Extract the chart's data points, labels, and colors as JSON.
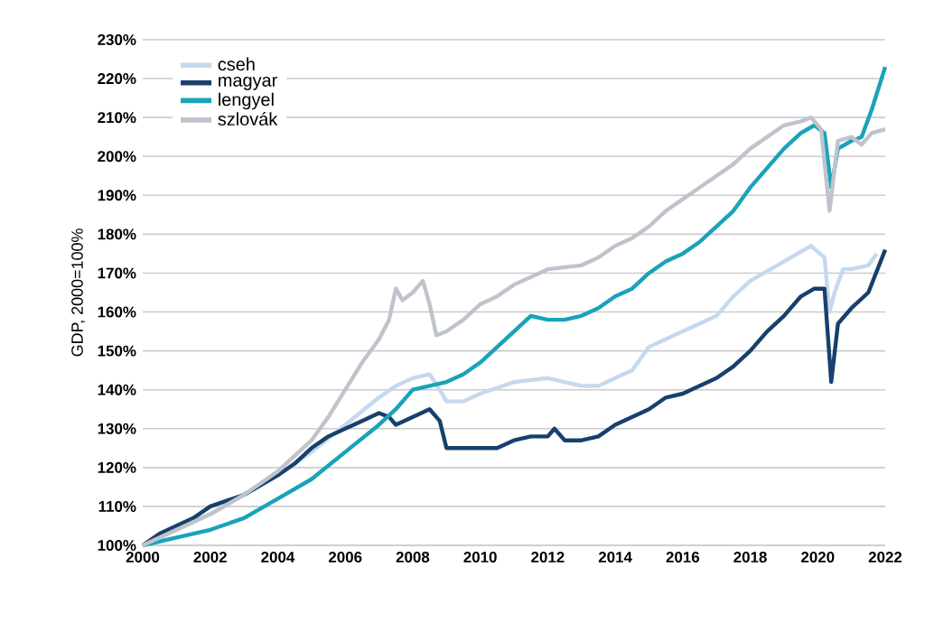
{
  "chart_data": {
    "type": "line",
    "ylabel": "GDP, 2000=100%",
    "xlim": [
      2000,
      2022
    ],
    "ylim": [
      100,
      230
    ],
    "xticks": [
      2000,
      2002,
      2004,
      2006,
      2008,
      2010,
      2012,
      2014,
      2016,
      2018,
      2020,
      2022
    ],
    "yticks": [
      {
        "value": 100,
        "label": "100%"
      },
      {
        "value": 110,
        "label": "110%"
      },
      {
        "value": 120,
        "label": "120%"
      },
      {
        "value": 130,
        "label": "130%"
      },
      {
        "value": 140,
        "label": "140%"
      },
      {
        "value": 150,
        "label": "150%"
      },
      {
        "value": 160,
        "label": "160%"
      },
      {
        "value": 170,
        "label": "170%"
      },
      {
        "value": 180,
        "label": "180%"
      },
      {
        "value": 190,
        "label": "190%"
      },
      {
        "value": 200,
        "label": "200%"
      },
      {
        "value": 210,
        "label": "210%"
      },
      {
        "value": 220,
        "label": "220%"
      },
      {
        "value": 230,
        "label": "230%"
      }
    ],
    "grid": "y",
    "legend": "top left",
    "marker": "none",
    "line_style": "solid",
    "series": [
      {
        "name": "cseh",
        "color": "#c5d9ee",
        "x": [
          2000,
          2001,
          2002,
          2003,
          2004,
          2005,
          2006,
          2007,
          2007.5,
          2008,
          2008.5,
          2008.8,
          2009,
          2009.5,
          2010,
          2011,
          2012,
          2012.5,
          2013,
          2013.5,
          2014,
          2014.5,
          2015,
          2016,
          2017,
          2017.5,
          2018,
          2019,
          2019.8,
          2020.2,
          2020.35,
          2020.5,
          2020.75,
          2021,
          2021.5,
          2021.75
        ],
        "values": [
          100,
          104,
          108,
          113,
          118,
          124,
          131,
          138,
          141,
          143,
          144,
          140,
          137,
          137,
          139,
          142,
          143,
          142,
          141,
          141,
          143,
          145,
          151,
          155,
          159,
          164,
          168,
          173,
          177,
          174,
          160,
          165,
          171,
          171,
          172,
          175
        ]
      },
      {
        "name": "magyar",
        "color": "#17406d",
        "x": [
          2000,
          2000.5,
          2001,
          2001.5,
          2002,
          2003,
          2004,
          2004.5,
          2005,
          2005.5,
          2006,
          2006.5,
          2007,
          2007.3,
          2007.5,
          2008,
          2008.5,
          2008.8,
          2009,
          2010,
          2010.5,
          2011,
          2011.5,
          2012,
          2012.2,
          2012.5,
          2013,
          2013.5,
          2014,
          2015,
          2015.5,
          2016,
          2016.5,
          2017,
          2017.5,
          2018,
          2018.5,
          2019,
          2019.5,
          2019.9,
          2020.2,
          2020.4,
          2020.6,
          2021,
          2021.5,
          2022
        ],
        "values": [
          100,
          103,
          105,
          107,
          110,
          113,
          118,
          121,
          125,
          128,
          130,
          132,
          134,
          133,
          131,
          133,
          135,
          132,
          125,
          125,
          125,
          127,
          128,
          128,
          130,
          127,
          127,
          128,
          131,
          135,
          138,
          139,
          141,
          143,
          146,
          150,
          155,
          159,
          164,
          166,
          166,
          142,
          157,
          161,
          165,
          176
        ]
      },
      {
        "name": "lengyel",
        "color": "#1aa3b8",
        "x": [
          2000,
          2001,
          2002,
          2003,
          2004,
          2005,
          2006,
          2007,
          2007.5,
          2008,
          2008.5,
          2009,
          2009.5,
          2010,
          2010.5,
          2011,
          2011.5,
          2012,
          2012.5,
          2013,
          2013.5,
          2014,
          2014.5,
          2015,
          2015.5,
          2016,
          2016.5,
          2017,
          2017.5,
          2018,
          2018.5,
          2019,
          2019.5,
          2019.9,
          2020.2,
          2020.4,
          2020.6,
          2021,
          2021.3,
          2021.6,
          2022
        ],
        "values": [
          100,
          102,
          104,
          107,
          112,
          117,
          124,
          131,
          135,
          140,
          141,
          142,
          144,
          147,
          151,
          155,
          159,
          158,
          158,
          159,
          161,
          164,
          166,
          170,
          173,
          175,
          178,
          182,
          186,
          192,
          197,
          202,
          206,
          208,
          206,
          192,
          202,
          204,
          205,
          212,
          223
        ]
      },
      {
        "name": "szlovák",
        "color": "#bfc3cc",
        "x": [
          2000,
          2001,
          2002,
          2003,
          2004,
          2005,
          2005.5,
          2006,
          2006.5,
          2007,
          2007.3,
          2007.5,
          2007.7,
          2008,
          2008.3,
          2008.5,
          2008.7,
          2009,
          2009.5,
          2010,
          2010.5,
          2011,
          2011.5,
          2012,
          2013,
          2013.5,
          2014,
          2014.5,
          2015,
          2015.5,
          2016,
          2016.5,
          2017,
          2017.5,
          2018,
          2018.5,
          2019,
          2019.5,
          2019.8,
          2020.1,
          2020.35,
          2020.6,
          2021,
          2021.3,
          2021.6,
          2022
        ],
        "values": [
          100,
          104,
          108,
          113,
          119,
          127,
          133,
          140,
          147,
          153,
          158,
          166,
          163,
          165,
          168,
          162,
          154,
          155,
          158,
          162,
          164,
          167,
          169,
          171,
          172,
          174,
          177,
          179,
          182,
          186,
          189,
          192,
          195,
          198,
          202,
          205,
          208,
          209,
          210,
          207,
          186,
          204,
          205,
          203,
          206,
          207
        ]
      }
    ]
  }
}
